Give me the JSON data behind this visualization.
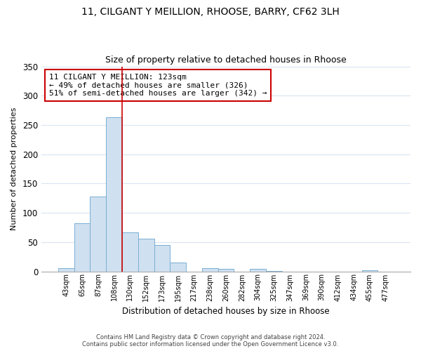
{
  "title": "11, CILGANT Y MEILLION, RHOOSE, BARRY, CF62 3LH",
  "subtitle": "Size of property relative to detached houses in Rhoose",
  "xlabel": "Distribution of detached houses by size in Rhoose",
  "ylabel": "Number of detached properties",
  "bar_color": "#cfe0f0",
  "bar_edge_color": "#7aafd4",
  "vline_color": "#cc0000",
  "categories": [
    "43sqm",
    "65sqm",
    "87sqm",
    "108sqm",
    "130sqm",
    "152sqm",
    "173sqm",
    "195sqm",
    "217sqm",
    "238sqm",
    "260sqm",
    "282sqm",
    "304sqm",
    "325sqm",
    "347sqm",
    "369sqm",
    "390sqm",
    "412sqm",
    "434sqm",
    "455sqm",
    "477sqm"
  ],
  "values": [
    6,
    82,
    128,
    263,
    67,
    56,
    45,
    15,
    0,
    6,
    4,
    0,
    4,
    1,
    0,
    0,
    0,
    0,
    0,
    2,
    0
  ],
  "ylim": [
    0,
    350
  ],
  "yticks": [
    0,
    50,
    100,
    150,
    200,
    250,
    300,
    350
  ],
  "vline_bar_index": 3,
  "annotation_text": "11 CILGANT Y MEILLION: 123sqm\n← 49% of detached houses are smaller (326)\n51% of semi-detached houses are larger (342) →",
  "annotation_box_color": "white",
  "annotation_box_edge": "#cc0000",
  "footer_line1": "Contains HM Land Registry data © Crown copyright and database right 2024.",
  "footer_line2": "Contains public sector information licensed under the Open Government Licence v3.0.",
  "background_color": "white",
  "grid_color": "#d8e4f0"
}
